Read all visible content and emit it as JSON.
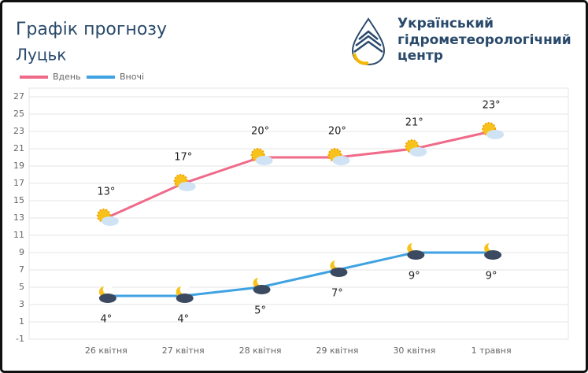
{
  "logo": {
    "lines": [
      "Український",
      "гідрометеорологічний",
      "центр"
    ]
  },
  "chart_data": {
    "type": "line",
    "title": "Графік прогнозу",
    "subtitle": "Луцьк",
    "categories": [
      null,
      "26 квітня",
      "27 квітня",
      "28 квітня",
      "29 квітня",
      "30 квітня",
      "1 травня",
      null
    ],
    "series": [
      {
        "name": "Вдень",
        "color": "#f06a8a",
        "values": [
          null,
          13,
          17,
          20,
          20,
          21,
          23,
          null
        ],
        "value_labels": [
          null,
          "13°",
          "17°",
          "20°",
          "20°",
          "21°",
          "23°",
          null
        ]
      },
      {
        "name": "Вночі",
        "color": "#3fa2e2",
        "values": [
          null,
          4,
          4,
          5,
          7,
          9,
          9,
          null
        ],
        "value_labels": [
          null,
          "4°",
          "4°",
          "5°",
          "7°",
          "9°",
          "9°",
          null
        ]
      }
    ],
    "ylim": [
      -1,
      28
    ],
    "yticks": [
      -1,
      1,
      3,
      5,
      7,
      9,
      11,
      13,
      15,
      17,
      19,
      21,
      23,
      25,
      27
    ],
    "grid": true,
    "legend": "top-left"
  }
}
